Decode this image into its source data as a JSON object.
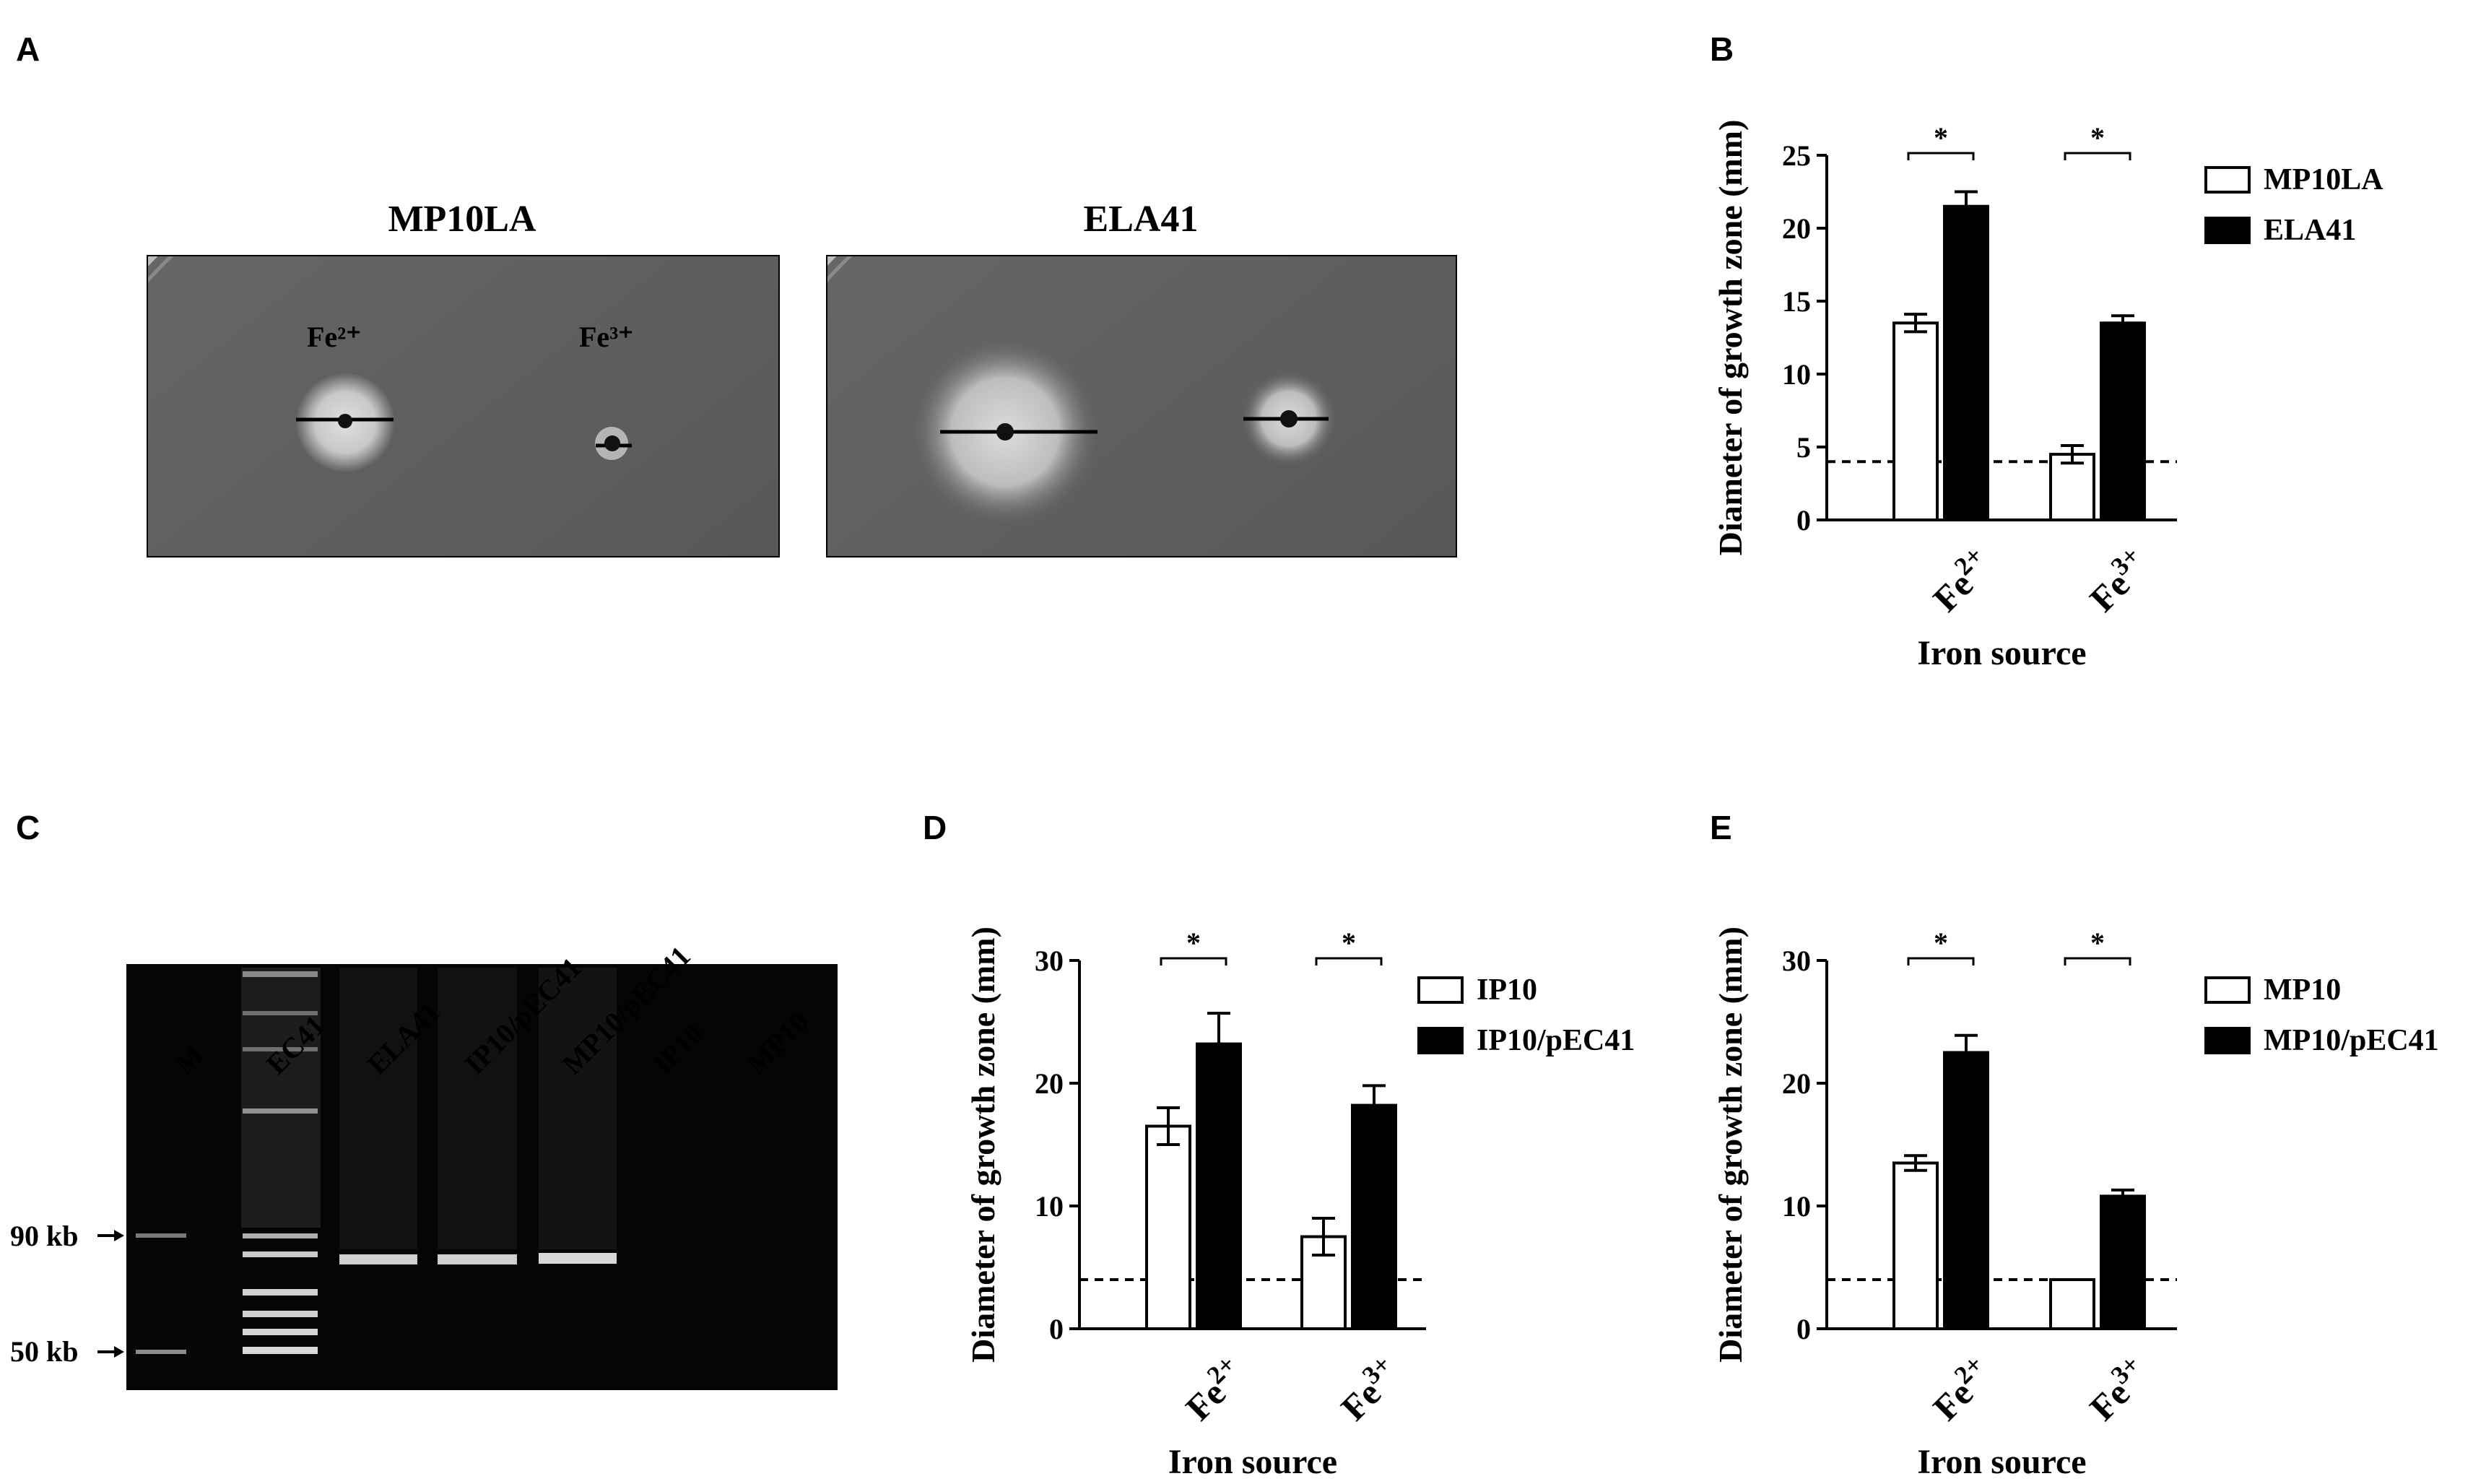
{
  "panel_letters": [
    "A",
    "B",
    "C",
    "D",
    "E"
  ],
  "panel_a": {
    "plates": [
      {
        "title": "MP10LA",
        "labels": [
          "Fe²⁺",
          "Fe³⁺"
        ]
      },
      {
        "title": "ELA41"
      }
    ]
  },
  "panel_c": {
    "lanes": [
      "M",
      "EC41",
      "ELA41",
      "IP10/pEC41",
      "MP10/pEC41",
      "IP10",
      "MP10"
    ],
    "markers": [
      "90 kb",
      "50 kb"
    ]
  },
  "chart_data": [
    {
      "panel": "B",
      "type": "bar",
      "categories": [
        {
          "base": "Fe",
          "sup": "2+"
        },
        {
          "base": "Fe",
          "sup": "3+"
        }
      ],
      "series": [
        {
          "name": "MP10LA",
          "values": [
            13.5,
            4.5
          ],
          "errors": [
            0.6,
            0.6
          ],
          "fill": "#ffffff"
        },
        {
          "name": "ELA41",
          "values": [
            21.5,
            13.5
          ],
          "errors": [
            1.0,
            0.5
          ],
          "fill": "#000000"
        }
      ],
      "ylim": [
        0,
        25
      ],
      "yticks": [
        0,
        5,
        10,
        15,
        20,
        25
      ],
      "ylabel": "Diameter of growth zone (mm)",
      "xlabel": "Iron source",
      "threshold": 4,
      "significance": [
        "*",
        "*"
      ],
      "legend": "right"
    },
    {
      "panel": "D",
      "type": "bar",
      "categories": [
        {
          "base": "Fe",
          "sup": "2+"
        },
        {
          "base": "Fe",
          "sup": "3+"
        }
      ],
      "series": [
        {
          "name": "IP10",
          "values": [
            16.5,
            7.5
          ],
          "errors": [
            1.5,
            1.5
          ],
          "fill": "#ffffff"
        },
        {
          "name": "IP10/pEC41",
          "values": [
            23.2,
            18.2
          ],
          "errors": [
            2.5,
            1.6
          ],
          "fill": "#000000"
        }
      ],
      "ylim": [
        0,
        30
      ],
      "yticks": [
        0,
        10,
        20,
        30
      ],
      "ylabel": "Diameter of growth zone (mm)",
      "xlabel": "Iron source",
      "threshold": 4,
      "significance": [
        "*",
        "*"
      ],
      "legend": "right"
    },
    {
      "panel": "E",
      "type": "bar",
      "categories": [
        {
          "base": "Fe",
          "sup": "2+"
        },
        {
          "base": "Fe",
          "sup": "3+"
        }
      ],
      "series": [
        {
          "name": "MP10",
          "values": [
            13.5,
            4.0
          ],
          "errors": [
            0.6,
            0
          ],
          "fill": "#ffffff"
        },
        {
          "name": "MP10/pEC41",
          "values": [
            22.5,
            10.8
          ],
          "errors": [
            1.4,
            0.5
          ],
          "fill": "#000000"
        }
      ],
      "ylim": [
        0,
        30
      ],
      "yticks": [
        0,
        10,
        20,
        30
      ],
      "ylabel": "Diameter of growth zone (mm)",
      "xlabel": "Iron source",
      "threshold": 4,
      "significance": [
        "*",
        "*"
      ],
      "legend": "right"
    }
  ]
}
